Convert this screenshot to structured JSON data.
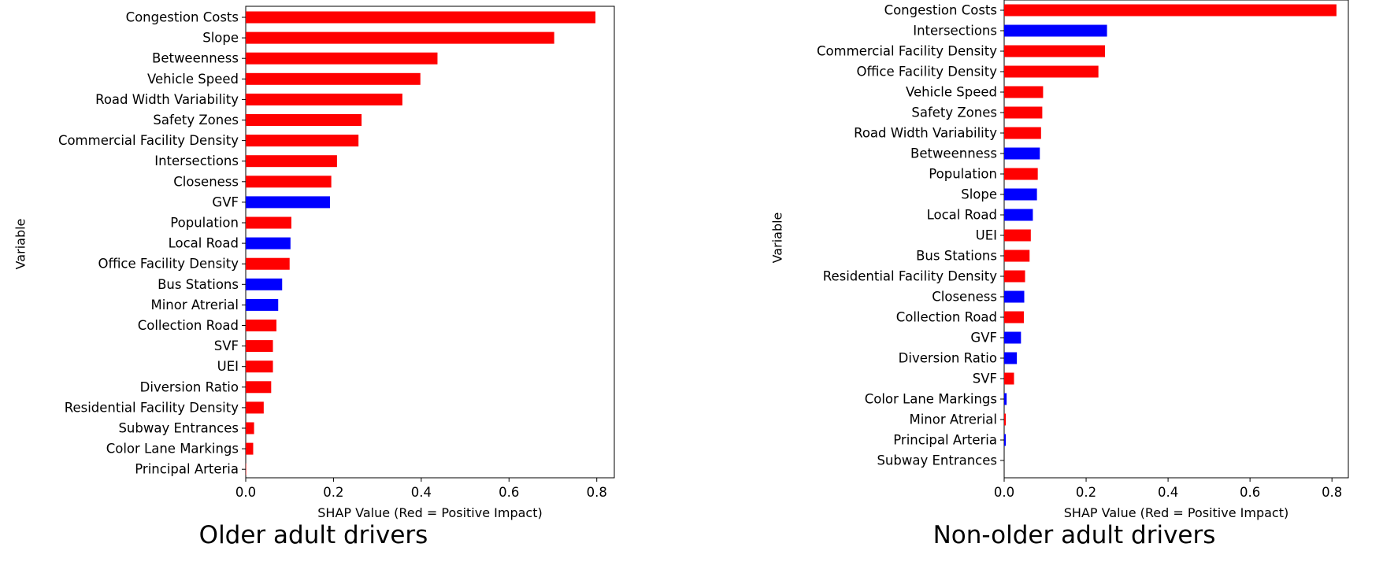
{
  "chart_data": [
    {
      "type": "bar",
      "orientation": "horizontal",
      "title": "",
      "caption": "Older adult drivers",
      "xlabel": "SHAP Value (Red = Positive Impact)",
      "ylabel": "Variable",
      "xlim": [
        0,
        0.84
      ],
      "xticks": [
        "0.0",
        "0.2",
        "0.4",
        "0.6",
        "0.8"
      ],
      "xtick_values": [
        0,
        0.2,
        0.4,
        0.6,
        0.8
      ],
      "grid": false,
      "colors": {
        "positive": "#ff0000",
        "negative": "#0000ff"
      },
      "categories": [
        "Congestion Costs",
        "Slope",
        "Betweenness",
        "Vehicle Speed",
        "Road Width Variability",
        "Safety Zones",
        "Commercial Facility Density",
        "Intersections",
        "Closeness",
        "GVF",
        "Population",
        "Local Road",
        "Office Facility Density",
        "Bus Stations",
        "Minor Atrerial",
        "Collection Road",
        "SVF",
        "UEI",
        "Diversion Ratio",
        "Residential Facility Density",
        "Subway Entrances",
        "Color Lane Markings",
        "Principal Arteria"
      ],
      "values": [
        0.797,
        0.703,
        0.437,
        0.398,
        0.357,
        0.264,
        0.257,
        0.208,
        0.195,
        0.192,
        0.104,
        0.102,
        0.1,
        0.083,
        0.074,
        0.07,
        0.062,
        0.062,
        0.058,
        0.041,
        0.019,
        0.017,
        0.001
      ],
      "impact": [
        "positive",
        "positive",
        "positive",
        "positive",
        "positive",
        "positive",
        "positive",
        "positive",
        "positive",
        "negative",
        "positive",
        "negative",
        "positive",
        "negative",
        "negative",
        "positive",
        "positive",
        "positive",
        "positive",
        "positive",
        "positive",
        "positive",
        "positive"
      ]
    },
    {
      "type": "bar",
      "orientation": "horizontal",
      "title": "",
      "caption": "Non-older adult drivers",
      "xlabel": "SHAP Value (Red = Positive Impact)",
      "ylabel": "Variable",
      "xlim": [
        0,
        0.84
      ],
      "xticks": [
        "0.0",
        "0.2",
        "0.4",
        "0.6",
        "0.8"
      ],
      "xtick_values": [
        0,
        0.2,
        0.4,
        0.6,
        0.8
      ],
      "grid": false,
      "colors": {
        "positive": "#ff0000",
        "negative": "#0000ff"
      },
      "categories": [
        "Congestion Costs",
        "Intersections",
        "Commercial Facility Density",
        "Office Facility Density",
        "Vehicle Speed",
        "Safety Zones",
        "Road Width Variability",
        "Betweenness",
        "Population",
        "Slope",
        "Local Road",
        "UEI",
        "Bus Stations",
        "Residential Facility Density",
        "Closeness",
        "Collection Road",
        "GVF",
        "Diversion Ratio",
        "SVF",
        "Color Lane Markings",
        "Minor Atrerial",
        "Principal Arteria",
        "Subway Entrances"
      ],
      "values": [
        0.811,
        0.251,
        0.246,
        0.23,
        0.095,
        0.093,
        0.09,
        0.087,
        0.082,
        0.08,
        0.07,
        0.065,
        0.062,
        0.051,
        0.049,
        0.048,
        0.041,
        0.031,
        0.024,
        0.006,
        0.004,
        0.004,
        0.0
      ],
      "impact": [
        "positive",
        "negative",
        "positive",
        "positive",
        "positive",
        "positive",
        "positive",
        "negative",
        "positive",
        "negative",
        "negative",
        "positive",
        "positive",
        "positive",
        "negative",
        "positive",
        "negative",
        "negative",
        "positive",
        "negative",
        "positive",
        "negative",
        "positive"
      ]
    }
  ]
}
